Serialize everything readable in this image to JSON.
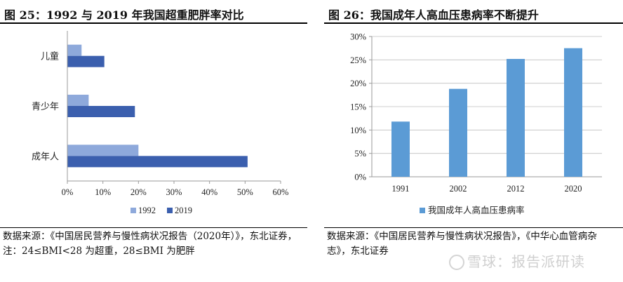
{
  "left_figure": {
    "title": "图 25：1992 与 2019 年我国超重肥胖率对比",
    "source": "数据来源：《中国居民营养与慢性病状况报告（2020年）》，东北证券，注：24≤BMI<28 为超重，28≤BMI 为肥胖"
  },
  "right_figure": {
    "title": "图 26：我国成年人高血压患病率不断提升",
    "source": "数据来源：《中国居民营养与慢性病状况报告》，《中华心血管病杂志》，东北证券"
  },
  "watermark": "雪球：报告派研读",
  "colors": {
    "series_1992": "#8ea9db",
    "series_2019": "#3b5fae",
    "bar_blue": "#5b9bd5",
    "axis": "#9a9a9a",
    "grid": "#bfbfbf"
  },
  "chart_data": [
    {
      "type": "bar",
      "orientation": "horizontal",
      "categories": [
        "儿童",
        "青少年",
        "成年人"
      ],
      "series": [
        {
          "name": "1992",
          "values": [
            4,
            6,
            20
          ]
        },
        {
          "name": "2019",
          "values": [
            10.4,
            19,
            50.7
          ]
        }
      ],
      "xlim": [
        0,
        60
      ],
      "xticks": [
        "0%",
        "10%",
        "20%",
        "30%",
        "40%",
        "50%",
        "60%"
      ],
      "grid": false,
      "legend_position": "bottom"
    },
    {
      "type": "bar",
      "categories": [
        "1991",
        "2002",
        "2012",
        "2020"
      ],
      "series": [
        {
          "name": "我国成年人高血压患病率",
          "values": [
            11.8,
            18.8,
            25.2,
            27.5
          ]
        }
      ],
      "ylim": [
        0,
        30
      ],
      "yticks": [
        "0%",
        "5%",
        "10%",
        "15%",
        "20%",
        "25%",
        "30%"
      ],
      "grid": true,
      "legend_position": "bottom"
    }
  ]
}
